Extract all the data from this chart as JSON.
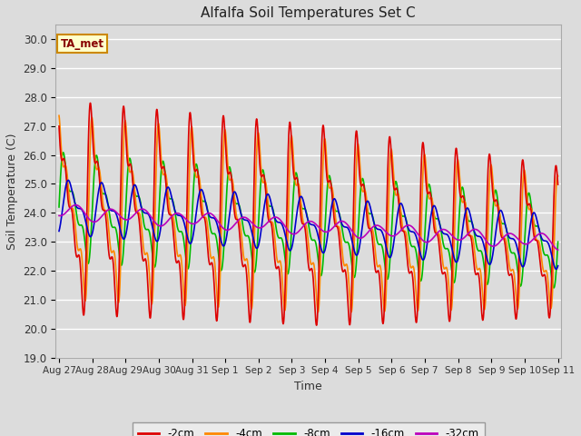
{
  "title": "Alfalfa Soil Temperatures Set C",
  "xlabel": "Time",
  "ylabel": "Soil Temperature (C)",
  "ylim": [
    19.0,
    30.5
  ],
  "yticks": [
    19.0,
    20.0,
    21.0,
    22.0,
    23.0,
    24.0,
    25.0,
    26.0,
    27.0,
    28.0,
    29.0,
    30.0
  ],
  "bg_color": "#dcdcdc",
  "plot_bg": "#dcdcdc",
  "grid_color": "white",
  "series": {
    "-2cm": {
      "color": "#dd0000",
      "lw": 1.2
    },
    "-4cm": {
      "color": "#ff8800",
      "lw": 1.2
    },
    "-8cm": {
      "color": "#00bb00",
      "lw": 1.2
    },
    "-16cm": {
      "color": "#0000cc",
      "lw": 1.2
    },
    "-32cm": {
      "color": "#bb00bb",
      "lw": 1.2
    }
  },
  "annotation": "TA_met",
  "xtick_labels": [
    "Aug 27",
    "Aug 28",
    "Aug 29",
    "Aug 30",
    "Aug 31",
    "Sep 1",
    "Sep 2",
    "Sep 3",
    "Sep 4",
    "Sep 5",
    "Sep 6",
    "Sep 7",
    "Sep 8",
    "Sep 9",
    "Sep 10",
    "Sep 11"
  ],
  "xtick_positions": [
    0,
    1,
    2,
    3,
    4,
    5,
    6,
    7,
    8,
    9,
    10,
    11,
    12,
    13,
    14,
    15
  ],
  "figsize": [
    6.4,
    4.8
  ],
  "dpi": 100
}
